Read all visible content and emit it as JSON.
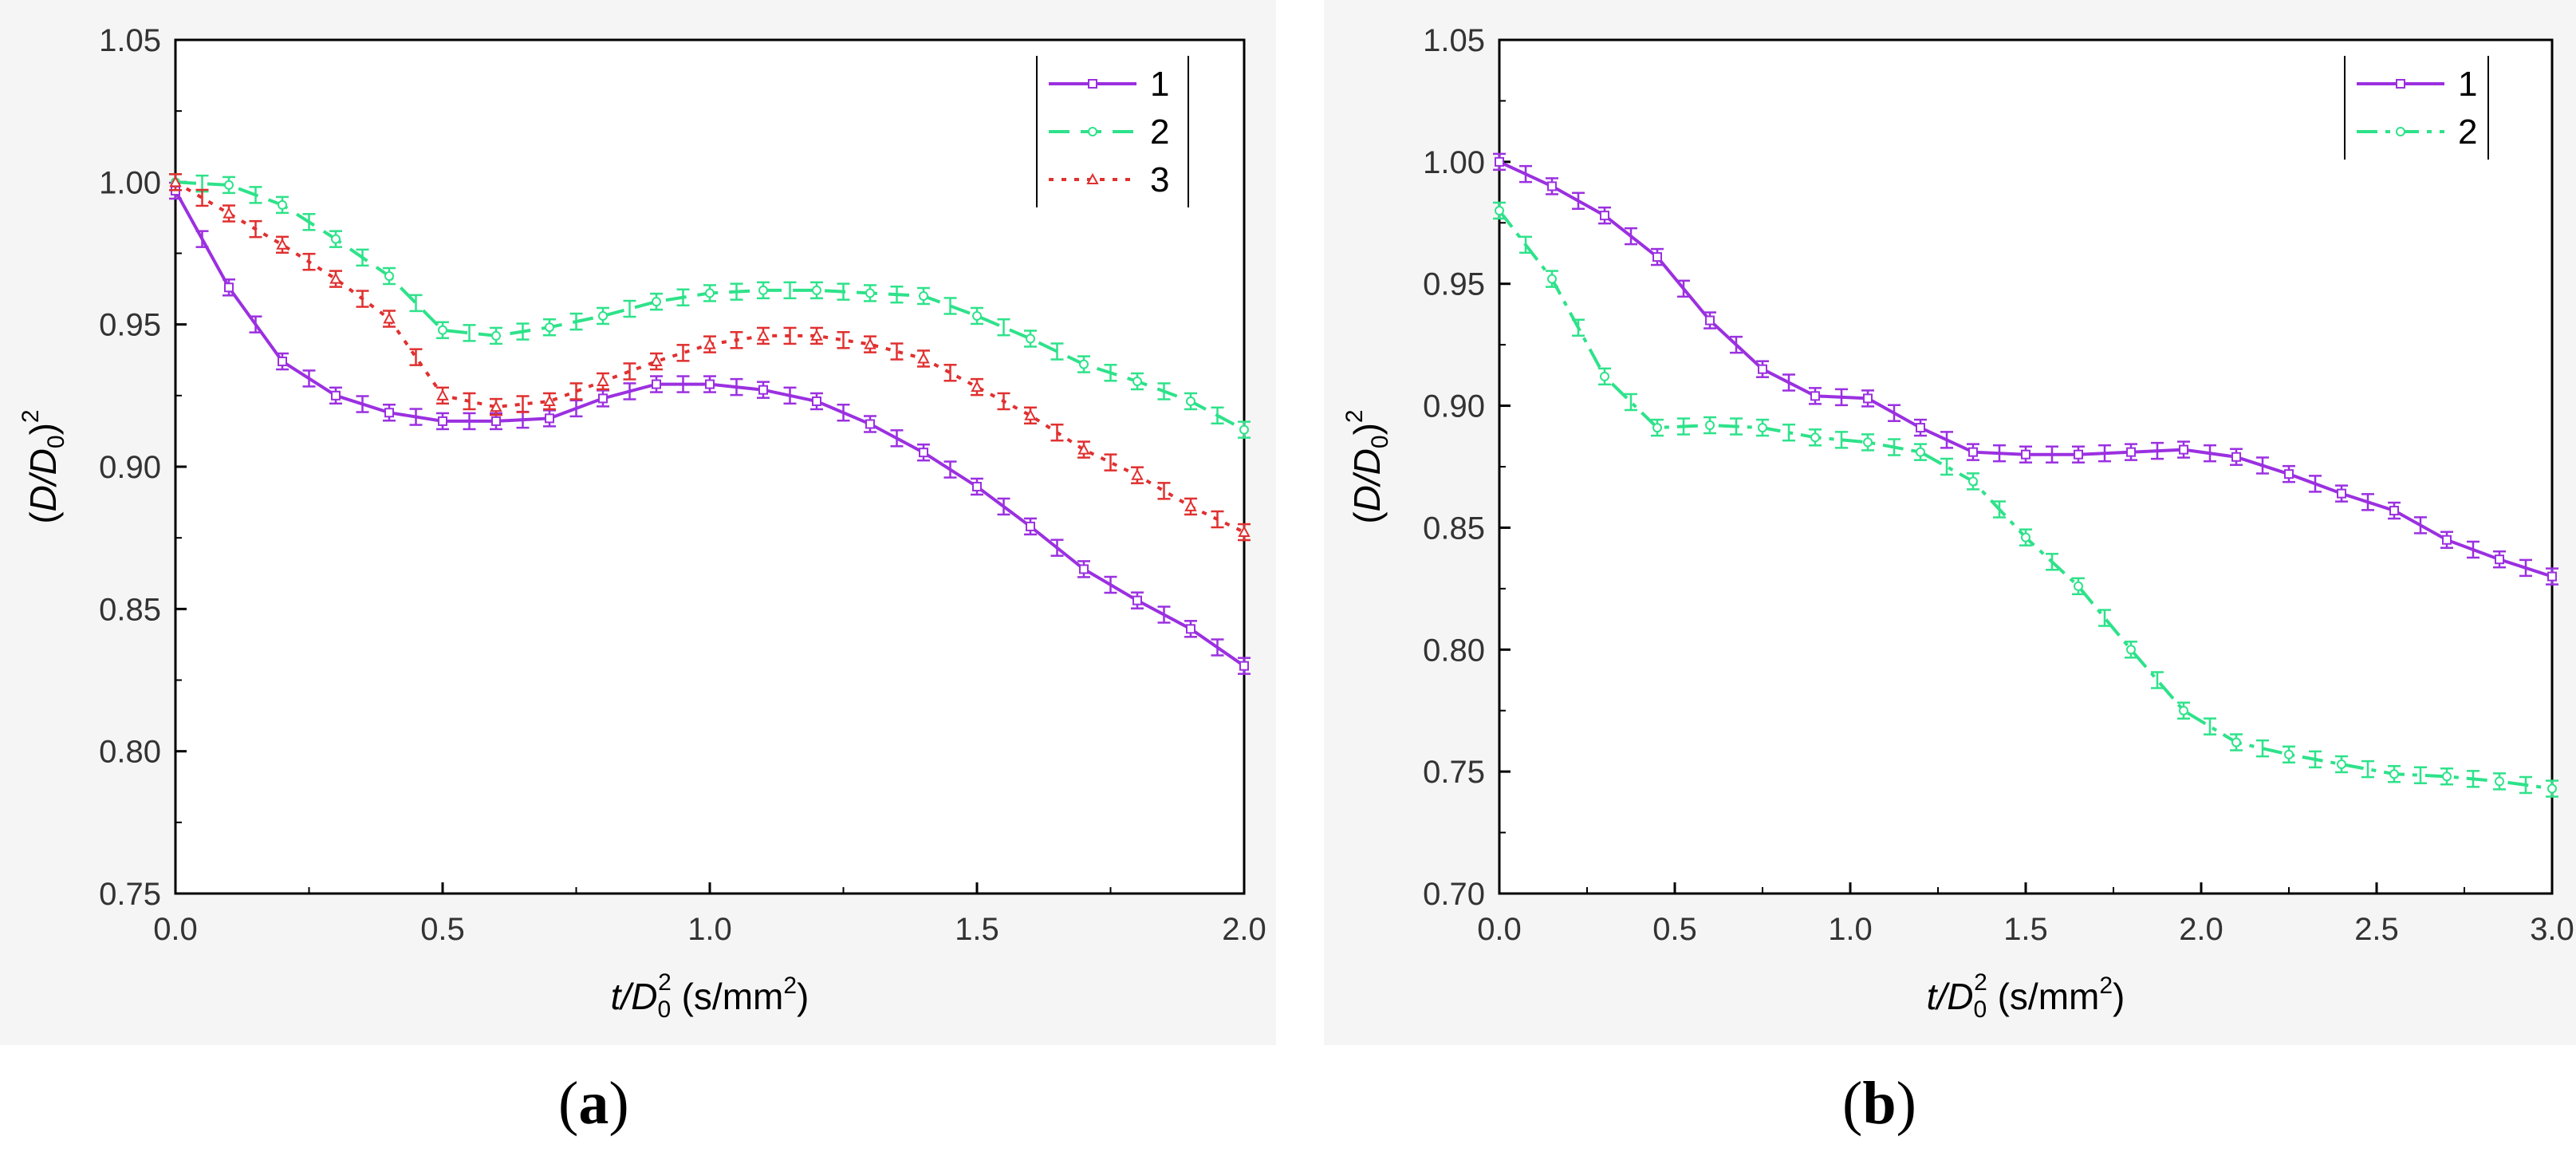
{
  "figure": {
    "panel_labels": [
      "a",
      "b"
    ]
  },
  "colors": {
    "series1": "#9b30e0",
    "series2": "#2ee28a",
    "series3": "#e03030",
    "axis": "#000000"
  },
  "chart_data": [
    {
      "type": "line",
      "panel": "a",
      "xlabel_main": "t/D",
      "xlabel_sub": "0",
      "xlabel_sup": "2",
      "xlabel_unit": " (s/mm",
      "xlabel_unit_sup": "2",
      "xlabel_close": ")",
      "ylabel_main": "(D/D",
      "ylabel_sub": "0",
      "ylabel_close": ")",
      "ylabel_sup": "2",
      "xlim": [
        0,
        2.0
      ],
      "ylim": [
        0.75,
        1.05
      ],
      "xticks": [
        "0.0",
        "0.5",
        "1.0",
        "1.5",
        "2.0"
      ],
      "xtick_values": [
        0,
        0.5,
        1.0,
        1.5,
        2.0
      ],
      "yticks": [
        "0.75",
        "0.80",
        "0.85",
        "0.90",
        "0.95",
        "1.00",
        "1.05"
      ],
      "ytick_values": [
        0.75,
        0.8,
        0.85,
        0.9,
        0.95,
        1.0,
        1.05
      ],
      "legend_position": "top-right",
      "series": [
        {
          "name": "1",
          "color_key": "series1",
          "dash": "solid",
          "marker": "square",
          "x": [
            0.0,
            0.1,
            0.2,
            0.3,
            0.4,
            0.5,
            0.6,
            0.7,
            0.8,
            0.9,
            1.0,
            1.1,
            1.2,
            1.3,
            1.4,
            1.5,
            1.6,
            1.7,
            1.8,
            1.9,
            2.0
          ],
          "y": [
            0.997,
            0.963,
            0.937,
            0.925,
            0.919,
            0.916,
            0.916,
            0.917,
            0.924,
            0.929,
            0.929,
            0.927,
            0.923,
            0.915,
            0.905,
            0.893,
            0.879,
            0.864,
            0.853,
            0.843,
            0.83
          ]
        },
        {
          "name": "2",
          "color_key": "series2",
          "dash": "dash",
          "marker": "circle",
          "x": [
            0.0,
            0.1,
            0.2,
            0.3,
            0.4,
            0.5,
            0.6,
            0.7,
            0.8,
            0.9,
            1.0,
            1.1,
            1.2,
            1.3,
            1.4,
            1.5,
            1.6,
            1.7,
            1.8,
            1.9,
            2.0
          ],
          "y": [
            1.0,
            0.999,
            0.992,
            0.98,
            0.967,
            0.948,
            0.946,
            0.949,
            0.953,
            0.958,
            0.961,
            0.962,
            0.962,
            0.961,
            0.96,
            0.953,
            0.945,
            0.936,
            0.93,
            0.923,
            0.913
          ]
        },
        {
          "name": "3",
          "color_key": "series3",
          "dash": "dot",
          "marker": "triangle",
          "x": [
            0.0,
            0.1,
            0.2,
            0.3,
            0.4,
            0.5,
            0.6,
            0.7,
            0.8,
            0.9,
            1.0,
            1.1,
            1.2,
            1.3,
            1.4,
            1.5,
            1.6,
            1.7,
            1.8,
            1.9,
            2.0
          ],
          "y": [
            1.0,
            0.989,
            0.978,
            0.966,
            0.952,
            0.925,
            0.921,
            0.923,
            0.93,
            0.937,
            0.943,
            0.946,
            0.946,
            0.943,
            0.938,
            0.928,
            0.918,
            0.906,
            0.897,
            0.886,
            0.877
          ]
        }
      ]
    },
    {
      "type": "line",
      "panel": "b",
      "xlabel_main": "t/D",
      "xlabel_sub": "0",
      "xlabel_sup": "2",
      "xlabel_unit": " (s/mm",
      "xlabel_unit_sup": "2",
      "xlabel_close": ")",
      "ylabel_main": "(D/D",
      "ylabel_sub": "0",
      "ylabel_close": ")",
      "ylabel_sup": "2",
      "xlim": [
        0,
        3.0
      ],
      "ylim": [
        0.7,
        1.05
      ],
      "xticks": [
        "0.0",
        "0.5",
        "1.0",
        "1.5",
        "2.0",
        "2.5",
        "3.0"
      ],
      "xtick_values": [
        0,
        0.5,
        1.0,
        1.5,
        2.0,
        2.5,
        3.0
      ],
      "yticks": [
        "0.70",
        "0.75",
        "0.80",
        "0.85",
        "0.90",
        "0.95",
        "1.00",
        "1.05"
      ],
      "ytick_values": [
        0.7,
        0.75,
        0.8,
        0.85,
        0.9,
        0.95,
        1.0,
        1.05
      ],
      "legend_position": "top-right",
      "series": [
        {
          "name": "1",
          "color_key": "series1",
          "dash": "solid",
          "marker": "square",
          "x": [
            0.0,
            0.15,
            0.3,
            0.45,
            0.6,
            0.75,
            0.9,
            1.05,
            1.2,
            1.35,
            1.5,
            1.65,
            1.8,
            1.95,
            2.1,
            2.25,
            2.4,
            2.55,
            2.7,
            2.85,
            3.0
          ],
          "y": [
            1.0,
            0.99,
            0.978,
            0.961,
            0.935,
            0.915,
            0.904,
            0.903,
            0.891,
            0.881,
            0.88,
            0.88,
            0.881,
            0.882,
            0.879,
            0.872,
            0.864,
            0.857,
            0.845,
            0.837,
            0.83
          ]
        },
        {
          "name": "2",
          "color_key": "series2",
          "dash": "dashdot",
          "marker": "circle",
          "x": [
            0.0,
            0.15,
            0.3,
            0.45,
            0.6,
            0.75,
            0.9,
            1.05,
            1.2,
            1.35,
            1.5,
            1.65,
            1.8,
            1.95,
            2.1,
            2.25,
            2.4,
            2.55,
            2.7,
            2.85,
            3.0
          ],
          "y": [
            0.98,
            0.952,
            0.912,
            0.891,
            0.892,
            0.891,
            0.887,
            0.885,
            0.881,
            0.869,
            0.846,
            0.826,
            0.8,
            0.775,
            0.762,
            0.757,
            0.753,
            0.749,
            0.748,
            0.746,
            0.743
          ]
        }
      ]
    }
  ]
}
